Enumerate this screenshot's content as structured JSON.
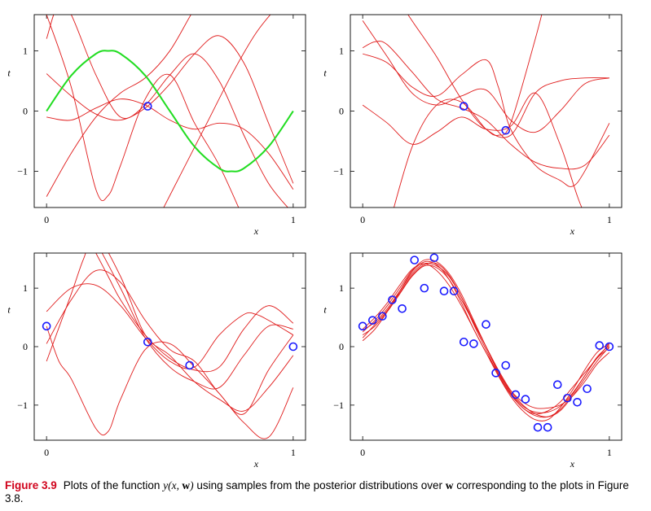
{
  "chart_data": [
    {
      "type": "line",
      "panel": "top-left",
      "xlim": [
        -0.05,
        1.05
      ],
      "ylim": [
        -1.6,
        1.6
      ],
      "x_ticks": [
        "0",
        "1"
      ],
      "y_ticks": [
        "1",
        "0",
        "−1"
      ],
      "xlabel": "x",
      "ylabel": "t",
      "true_curve": {
        "color": "#22dd22",
        "x": [
          0,
          0.1,
          0.2,
          0.25,
          0.3,
          0.4,
          0.5,
          0.6,
          0.7,
          0.75,
          0.8,
          0.9,
          1.0
        ],
        "y": [
          0,
          0.59,
          0.95,
          1.0,
          0.95,
          0.59,
          0,
          -0.59,
          -0.95,
          -1.0,
          -0.95,
          -0.59,
          0
        ]
      },
      "points": [
        {
          "x": 0.41,
          "y": 0.08
        }
      ],
      "samples": [
        {
          "x": [
            0,
            0.1,
            0.2,
            0.3,
            0.4,
            0.5,
            0.6,
            0.7,
            0.8,
            0.9,
            1.0
          ],
          "y": [
            -1.42,
            -0.7,
            -0.1,
            0.3,
            0.55,
            1.0,
            1.7,
            2.3,
            2.8,
            3.3,
            3.8
          ]
        },
        {
          "x": [
            0,
            0.1,
            0.2,
            0.3,
            0.4,
            0.5,
            0.6,
            0.7,
            0.8,
            0.9,
            1.0
          ],
          "y": [
            0.62,
            0.25,
            -0.05,
            -0.15,
            0.05,
            0.45,
            0.95,
            1.25,
            0.8,
            -0.2,
            -1.2
          ]
        },
        {
          "x": [
            0,
            0.1,
            0.2,
            0.3,
            0.4,
            0.5,
            0.6,
            0.7,
            0.8,
            0.9,
            1.0
          ],
          "y": [
            -0.1,
            -0.15,
            0.05,
            0.2,
            0.1,
            -0.15,
            -0.3,
            -0.2,
            -0.3,
            -0.7,
            -1.3
          ]
        },
        {
          "x": [
            0,
            0.05,
            0.1,
            0.2,
            0.3,
            0.4,
            0.5,
            0.6,
            0.7,
            0.8,
            0.9,
            1.0
          ],
          "y": [
            1.2,
            1.8,
            1.6,
            0.6,
            -0.1,
            0.1,
            0.6,
            0.95,
            0.5,
            -0.4,
            -1.2,
            -1.7
          ]
        },
        {
          "x": [
            0,
            0.1,
            0.2,
            0.25,
            0.3,
            0.4,
            0.5,
            0.6,
            0.7,
            0.8
          ],
          "y": [
            1.6,
            0.4,
            -1.3,
            -1.4,
            -0.9,
            0.2,
            0.6,
            -0.2,
            -0.9,
            -1.8
          ]
        },
        {
          "x": [
            0.45,
            0.55,
            0.65,
            0.75,
            0.85,
            0.95,
            1.0
          ],
          "y": [
            -1.8,
            -1.0,
            -0.2,
            0.6,
            1.3,
            1.8,
            2.0
          ]
        }
      ]
    },
    {
      "type": "line",
      "panel": "top-right",
      "xlim": [
        -0.05,
        1.05
      ],
      "ylim": [
        -1.6,
        1.6
      ],
      "x_ticks": [
        "0",
        "1"
      ],
      "y_ticks": [
        "1",
        "0",
        "−1"
      ],
      "xlabel": "x",
      "ylabel": "t",
      "points": [
        {
          "x": 0.41,
          "y": 0.08
        },
        {
          "x": 0.58,
          "y": -0.32
        }
      ],
      "samples": [
        {
          "x": [
            0,
            0.05,
            0.1,
            0.2,
            0.3,
            0.4,
            0.5,
            0.6,
            0.7,
            0.8,
            0.9,
            1.0
          ],
          "y": [
            1.05,
            1.15,
            1.1,
            0.65,
            0.2,
            0.05,
            -0.15,
            -0.55,
            -0.85,
            -0.95,
            -0.9,
            -0.4
          ]
        },
        {
          "x": [
            0,
            0.1,
            0.2,
            0.3,
            0.4,
            0.5,
            0.55,
            0.6,
            0.7,
            0.8,
            0.85,
            0.9,
            1.0
          ],
          "y": [
            0.95,
            0.8,
            0.4,
            0.25,
            0.6,
            0.85,
            0.4,
            -0.3,
            -0.9,
            -1.15,
            -1.25,
            -1.0,
            -0.2
          ]
        },
        {
          "x": [
            0,
            0.1,
            0.2,
            0.3,
            0.4,
            0.5,
            0.6,
            0.7,
            0.8,
            0.9,
            1.0
          ],
          "y": [
            1.5,
            0.9,
            0.3,
            0.1,
            0.25,
            0.35,
            -0.15,
            -0.35,
            0.0,
            0.45,
            0.55
          ]
        },
        {
          "x": [
            0.12,
            0.2,
            0.3,
            0.4,
            0.5,
            0.6,
            0.7,
            0.8,
            0.9,
            1.0
          ],
          "y": [
            2.0,
            1.5,
            0.9,
            0.2,
            -0.3,
            -0.4,
            0.3,
            0.5,
            0.55,
            0.55
          ]
        },
        {
          "x": [
            0,
            0.1,
            0.2,
            0.3,
            0.4,
            0.5,
            0.6,
            0.7,
            0.8,
            0.9,
            1.0
          ],
          "y": [
            0.1,
            -0.2,
            -0.55,
            -0.35,
            -0.1,
            -0.3,
            -0.25,
            0.3,
            -0.55,
            -1.7,
            -2.0
          ]
        },
        {
          "x": [
            0.1,
            0.2,
            0.3,
            0.4,
            0.5,
            0.55,
            0.6,
            0.7,
            0.75
          ],
          "y": [
            -2.0,
            -0.6,
            0.1,
            0.15,
            -0.3,
            -0.4,
            -0.2,
            1.2,
            2.0
          ]
        }
      ]
    },
    {
      "type": "line",
      "panel": "bottom-left",
      "xlim": [
        -0.05,
        1.05
      ],
      "ylim": [
        -1.6,
        1.6
      ],
      "x_ticks": [
        "0",
        "1"
      ],
      "y_ticks": [
        "1",
        "0",
        "−1"
      ],
      "xlabel": "x",
      "ylabel": "t",
      "points": [
        {
          "x": 0.0,
          "y": 0.35
        },
        {
          "x": 0.41,
          "y": 0.08
        },
        {
          "x": 0.58,
          "y": -0.32
        },
        {
          "x": 1.0,
          "y": 0.0
        }
      ],
      "samples": [
        {
          "x": [
            0,
            0.1,
            0.2,
            0.3,
            0.4,
            0.5,
            0.6,
            0.7,
            0.8,
            0.85,
            0.9,
            1.0
          ],
          "y": [
            0.6,
            1.0,
            1.05,
            0.7,
            0.15,
            -0.25,
            -0.35,
            0.2,
            0.55,
            0.55,
            0.45,
            0.2
          ]
        },
        {
          "x": [
            0,
            0.05,
            0.1,
            0.2,
            0.25,
            0.3,
            0.4,
            0.5,
            0.6,
            0.7,
            0.8,
            0.9,
            1.0
          ],
          "y": [
            0.35,
            -0.25,
            -0.55,
            -1.4,
            -1.45,
            -0.9,
            -0.05,
            0.05,
            -0.35,
            -0.8,
            -1.3,
            -1.55,
            -0.7
          ]
        },
        {
          "x": [
            0,
            0.1,
            0.2,
            0.3,
            0.4,
            0.5,
            0.6,
            0.7,
            0.8,
            0.9,
            1.0
          ],
          "y": [
            0.05,
            0.8,
            1.3,
            1.1,
            0.45,
            -0.05,
            -0.25,
            -0.8,
            -1.15,
            -0.4,
            0.2
          ]
        },
        {
          "x": [
            0,
            0.1,
            0.15,
            0.2,
            0.3,
            0.4,
            0.5,
            0.6,
            0.7,
            0.8,
            0.9,
            1.0
          ],
          "y": [
            -0.25,
            0.9,
            1.5,
            1.9,
            1.2,
            0.2,
            -0.15,
            -0.6,
            -0.9,
            -1.1,
            -0.7,
            -0.15
          ]
        },
        {
          "x": [
            0.15,
            0.25,
            0.3,
            0.4,
            0.5,
            0.6,
            0.7,
            0.8,
            0.9,
            1.0
          ],
          "y": [
            2.0,
            1.2,
            0.8,
            0.2,
            -0.2,
            -0.4,
            -0.35,
            0.3,
            0.7,
            0.4
          ]
        },
        {
          "x": [
            0.2,
            0.3,
            0.4,
            0.5,
            0.6,
            0.7,
            0.8,
            0.9,
            1.0
          ],
          "y": [
            1.8,
            1.0,
            0.15,
            -0.35,
            -0.6,
            -0.7,
            -0.15,
            0.35,
            0.3
          ]
        }
      ]
    },
    {
      "type": "line",
      "panel": "bottom-right",
      "xlim": [
        -0.05,
        1.05
      ],
      "ylim": [
        -1.6,
        1.6
      ],
      "x_ticks": [
        "0",
        "1"
      ],
      "y_ticks": [
        "1",
        "0",
        "−1"
      ],
      "xlabel": "x",
      "ylabel": "t",
      "points": [
        {
          "x": 0.0,
          "y": 0.35
        },
        {
          "x": 0.04,
          "y": 0.45
        },
        {
          "x": 0.08,
          "y": 0.52
        },
        {
          "x": 0.12,
          "y": 0.8
        },
        {
          "x": 0.16,
          "y": 0.65
        },
        {
          "x": 0.21,
          "y": 1.48
        },
        {
          "x": 0.25,
          "y": 1.0
        },
        {
          "x": 0.29,
          "y": 1.52
        },
        {
          "x": 0.33,
          "y": 0.95
        },
        {
          "x": 0.37,
          "y": 0.95
        },
        {
          "x": 0.41,
          "y": 0.08
        },
        {
          "x": 0.45,
          "y": 0.05
        },
        {
          "x": 0.5,
          "y": 0.38
        },
        {
          "x": 0.54,
          "y": -0.45
        },
        {
          "x": 0.58,
          "y": -0.32
        },
        {
          "x": 0.62,
          "y": -0.82
        },
        {
          "x": 0.66,
          "y": -0.9
        },
        {
          "x": 0.71,
          "y": -1.38
        },
        {
          "x": 0.75,
          "y": -1.38
        },
        {
          "x": 0.79,
          "y": -0.65
        },
        {
          "x": 0.83,
          "y": -0.88
        },
        {
          "x": 0.87,
          "y": -0.95
        },
        {
          "x": 0.91,
          "y": -0.72
        },
        {
          "x": 0.96,
          "y": 0.02
        },
        {
          "x": 1.0,
          "y": 0.0
        }
      ],
      "samples": [
        {
          "x": [
            0,
            0.05,
            0.1,
            0.15,
            0.2,
            0.25,
            0.3,
            0.35,
            0.4,
            0.45,
            0.5,
            0.55,
            0.6,
            0.65,
            0.7,
            0.75,
            0.8,
            0.85,
            0.9,
            0.95,
            1.0
          ],
          "y": [
            0.25,
            0.45,
            0.7,
            1.0,
            1.3,
            1.48,
            1.45,
            1.25,
            0.9,
            0.45,
            0.0,
            -0.45,
            -0.8,
            -1.05,
            -1.15,
            -1.1,
            -0.95,
            -0.7,
            -0.45,
            -0.2,
            0.05
          ]
        },
        {
          "x": [
            0,
            0.05,
            0.1,
            0.15,
            0.2,
            0.25,
            0.3,
            0.35,
            0.4,
            0.45,
            0.5,
            0.55,
            0.6,
            0.65,
            0.7,
            0.75,
            0.8,
            0.85,
            0.9,
            0.95,
            1.0
          ],
          "y": [
            0.2,
            0.35,
            0.6,
            0.9,
            1.2,
            1.38,
            1.35,
            1.15,
            0.8,
            0.4,
            0.0,
            -0.4,
            -0.75,
            -1.0,
            -1.15,
            -1.2,
            -1.1,
            -0.85,
            -0.55,
            -0.25,
            0.0
          ]
        },
        {
          "x": [
            0,
            0.05,
            0.1,
            0.15,
            0.2,
            0.25,
            0.3,
            0.35,
            0.4,
            0.45,
            0.5,
            0.55,
            0.6,
            0.65,
            0.7,
            0.75,
            0.8,
            0.85,
            0.9,
            0.95,
            1.0
          ],
          "y": [
            0.1,
            0.3,
            0.6,
            0.95,
            1.28,
            1.45,
            1.4,
            1.15,
            0.75,
            0.3,
            -0.1,
            -0.5,
            -0.85,
            -1.1,
            -1.25,
            -1.25,
            -1.05,
            -0.75,
            -0.4,
            -0.1,
            0.05
          ]
        },
        {
          "x": [
            0,
            0.05,
            0.1,
            0.15,
            0.2,
            0.25,
            0.3,
            0.35,
            0.4,
            0.45,
            0.5,
            0.55,
            0.6,
            0.65,
            0.7,
            0.75,
            0.8,
            0.85,
            0.9,
            0.95,
            1.0
          ],
          "y": [
            0.3,
            0.5,
            0.75,
            1.05,
            1.32,
            1.42,
            1.3,
            1.05,
            0.7,
            0.3,
            -0.1,
            -0.45,
            -0.75,
            -0.95,
            -1.05,
            -1.05,
            -1.0,
            -0.85,
            -0.6,
            -0.3,
            -0.1
          ]
        },
        {
          "x": [
            0,
            0.05,
            0.1,
            0.15,
            0.2,
            0.25,
            0.3,
            0.35,
            0.4,
            0.45,
            0.5,
            0.55,
            0.6,
            0.65,
            0.7,
            0.75,
            0.8,
            0.85,
            0.9,
            0.95,
            1.0
          ],
          "y": [
            0.15,
            0.38,
            0.62,
            0.92,
            1.22,
            1.4,
            1.42,
            1.22,
            0.85,
            0.38,
            -0.05,
            -0.48,
            -0.82,
            -1.05,
            -1.18,
            -1.2,
            -1.08,
            -0.82,
            -0.5,
            -0.18,
            0.02
          ]
        },
        {
          "x": [
            0,
            0.05,
            0.1,
            0.15,
            0.2,
            0.25,
            0.3,
            0.35,
            0.4,
            0.45,
            0.5,
            0.55,
            0.6,
            0.65,
            0.7,
            0.75,
            0.8,
            0.85,
            0.9,
            0.95,
            1.0
          ],
          "y": [
            0.28,
            0.42,
            0.65,
            0.95,
            1.25,
            1.42,
            1.38,
            1.2,
            0.85,
            0.42,
            0.0,
            -0.42,
            -0.78,
            -1.02,
            -1.12,
            -1.12,
            -1.02,
            -0.8,
            -0.5,
            -0.2,
            -0.02
          ]
        }
      ]
    }
  ],
  "colors": {
    "sample_curve": "#e01b1b",
    "true_curve": "#22dd22",
    "point": "#1a1aff",
    "caption_label": "#d0021b"
  },
  "caption": {
    "label": "Figure 3.9",
    "text_1": "Plots of the function ",
    "math": "y(x, ",
    "bold_w": "w",
    "math_close": ")",
    "text_2": " using samples from the posterior distributions over ",
    "bold_w2": "w",
    "text_3": " corresponding to the plots in Figure 3.8."
  }
}
